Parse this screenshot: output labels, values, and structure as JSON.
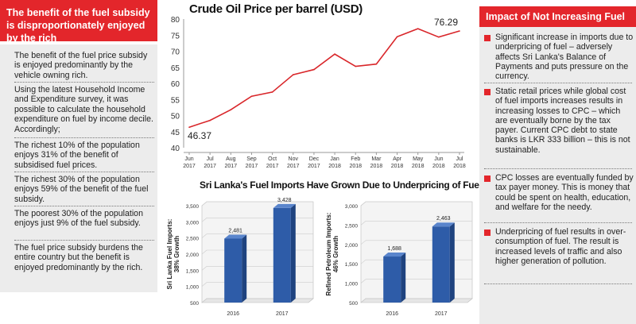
{
  "left_panel": {
    "title": "The benefit of the fuel subsidy is disproportionately enjoyed by the rich",
    "items": [
      "The benefit of the fuel price subsidy is enjoyed predominantly by the vehicle owning rich.",
      "Using the latest Household Income and Expenditure survey, it was possible to calculate the household expenditure on fuel by income decile. Accordingly;",
      "The richest 10% of the population enjoys 31% of the benefit of subsidised fuel prices.",
      "The richest 30% of the population enjoys 59% of the benefit of the fuel subsidy.",
      "The poorest 30% of the population enjoys just 9% of the fuel subsidy.",
      "The fuel price subsidy burdens the entire country but the benefit is enjoyed predominantly by the rich."
    ]
  },
  "right_panel": {
    "title": "Impact of Not Increasing Fuel Prices",
    "items": [
      "Significant increase in imports due to underpricing of fuel – adversely affects Sri Lanka's Balance of Payments and puts pressure on the currency.",
      "Static retail prices while global cost of fuel imports increases results in increasing losses to CPC – which are eventually borne by the tax payer. Current CPC debt to state banks is LKR 333 billion – this is not sustainable.",
      "CPC losses are eventually funded by tax payer money. This is money that could be spent on health, education, and welfare for the needy.",
      "Underpricing of fuel results in over-consumption of fuel. The result is increased levels of traffic and also higher generation of pollution."
    ]
  },
  "colors": {
    "accent_red": "#e3262b",
    "panel_gray": "#ececec",
    "line_red": "#d9262a",
    "bar_blue": "#2e5ca8"
  },
  "chart_data": [
    {
      "type": "line",
      "title": "Crude Oil Price per barrel (USD)",
      "categories": [
        "Jun 2017",
        "Jul 2017",
        "Aug 2017",
        "Sep 2017",
        "Oct 2017",
        "Nov 2017",
        "Dec 2017",
        "Jan 2018",
        "Feb 2018",
        "Mar 2018",
        "Apr 2018",
        "May 2018",
        "Jun 2018",
        "Jul 2018"
      ],
      "values": [
        46.37,
        48.5,
        51.8,
        56.0,
        57.3,
        62.7,
        64.3,
        69.1,
        65.3,
        66.0,
        74.5,
        77.0,
        74.4,
        76.29
      ],
      "first_label": "46.37",
      "last_label": "76.29",
      "ylim": [
        40,
        80
      ],
      "yticks": [
        40,
        45,
        50,
        55,
        60,
        65,
        70,
        75,
        80
      ],
      "grid": false
    },
    {
      "title": "Sri Lanka's Fuel Imports Have Grown Due to Underpricing of Fuel"
    },
    {
      "type": "bar",
      "ylabel": "Sri Lanka Fuel Imports: 38% Growth",
      "categories": [
        "2016",
        "2017"
      ],
      "values": [
        2481,
        3428
      ],
      "value_labels": [
        "2,481",
        "3,428"
      ],
      "ylim": [
        500,
        3500
      ],
      "yticks": [
        "500",
        "1,000",
        "1,500",
        "2,000",
        "2,500",
        "3,000",
        "3,500"
      ],
      "ytick_values": [
        500,
        1000,
        1500,
        2000,
        2500,
        3000,
        3500
      ]
    },
    {
      "type": "bar",
      "ylabel": "Refined Petroleum Imports: 46% Growth",
      "categories": [
        "2016",
        "2017"
      ],
      "values": [
        1688,
        2463
      ],
      "value_labels": [
        "1,688",
        "2,463"
      ],
      "ylim": [
        500,
        3000
      ],
      "yticks": [
        "500",
        "1,000",
        "1,500",
        "2,000",
        "2,500",
        "3,000"
      ],
      "ytick_values": [
        500,
        1000,
        1500,
        2000,
        2500,
        3000
      ]
    }
  ]
}
